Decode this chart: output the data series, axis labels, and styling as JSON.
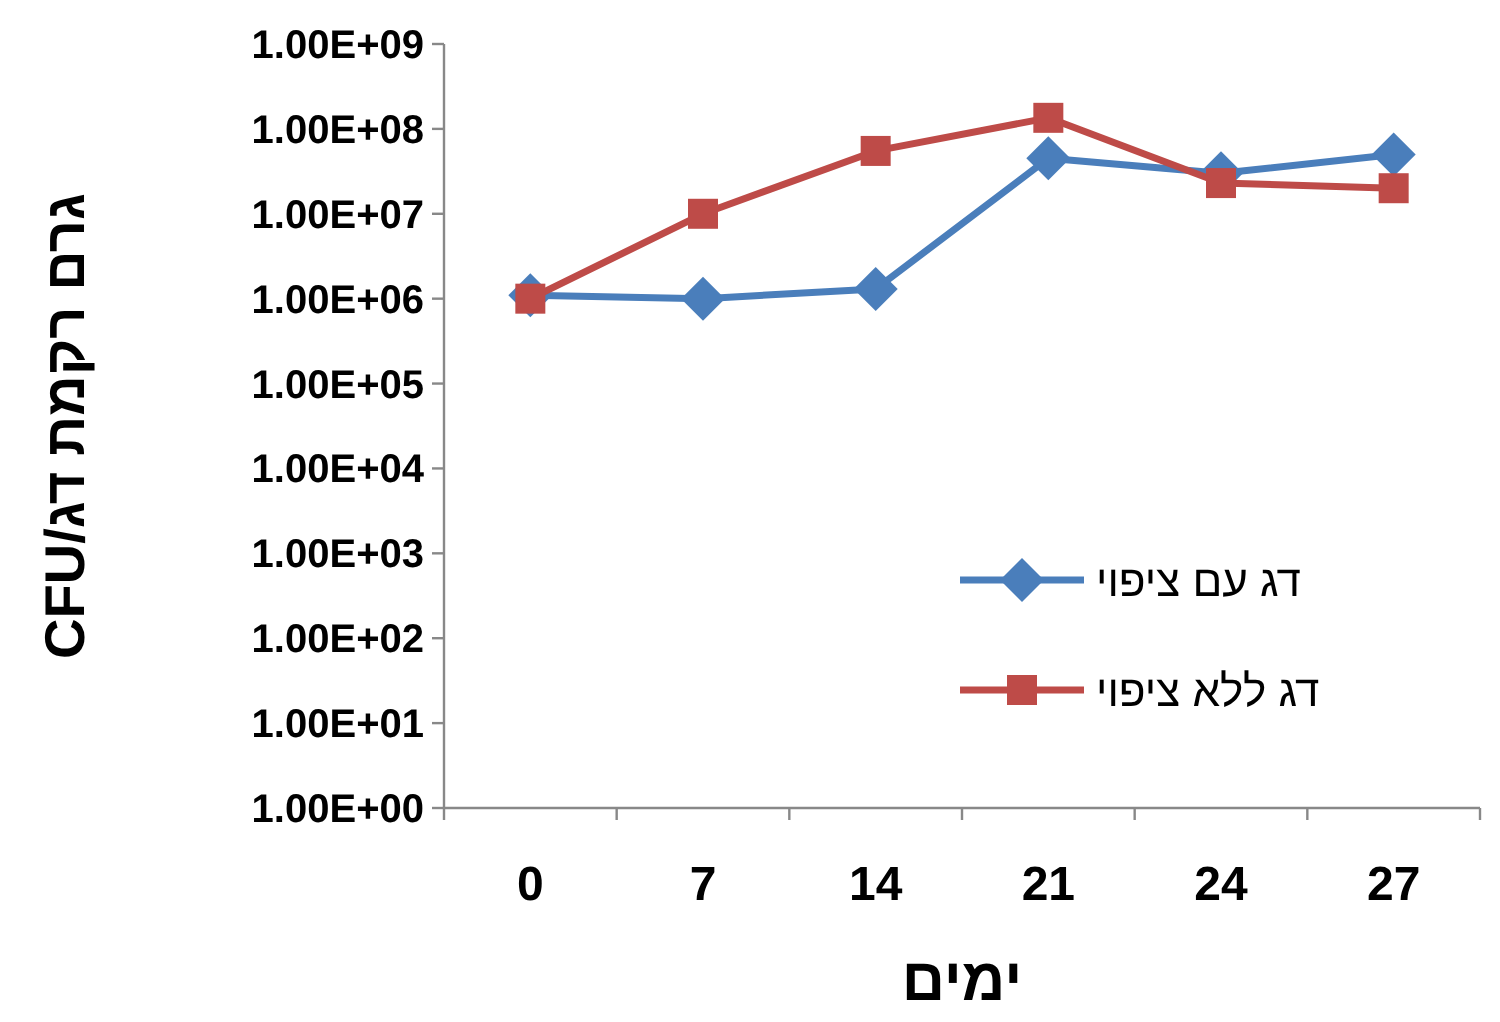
{
  "chart_data": {
    "type": "line",
    "xlabel": "ימים",
    "ylabel": "גרם רקמת דג/CFU",
    "categories": [
      "0",
      "7",
      "14",
      "21",
      "24",
      "27"
    ],
    "log": "y",
    "ylim": [
      1,
      1000000000
    ],
    "yticks": [
      {
        "value": 1,
        "label": "1.00E+00"
      },
      {
        "value": 10,
        "label": "1.00E+01"
      },
      {
        "value": 100,
        "label": "1.00E+02"
      },
      {
        "value": 1000,
        "label": "1.00E+03"
      },
      {
        "value": 10000,
        "label": "1.00E+04"
      },
      {
        "value": 100000,
        "label": "1.00E+05"
      },
      {
        "value": 1000000,
        "label": "1.00E+06"
      },
      {
        "value": 10000000,
        "label": "1.00E+07"
      },
      {
        "value": 100000000,
        "label": "1.00E+08"
      },
      {
        "value": 1000000000,
        "label": "1.00E+09"
      }
    ],
    "legend": "right",
    "series": [
      {
        "name": "דג עם ציפוי",
        "color": "#4a7ebb",
        "marker": "diamond",
        "values": [
          1100000,
          1000000,
          1300000,
          45000000,
          30000000,
          50000000
        ]
      },
      {
        "name": "דג ללא ציפוי",
        "color": "#be4b48",
        "marker": "square",
        "values": [
          1000000,
          10000000,
          55000000,
          135000000,
          23000000,
          20000000
        ]
      }
    ]
  }
}
